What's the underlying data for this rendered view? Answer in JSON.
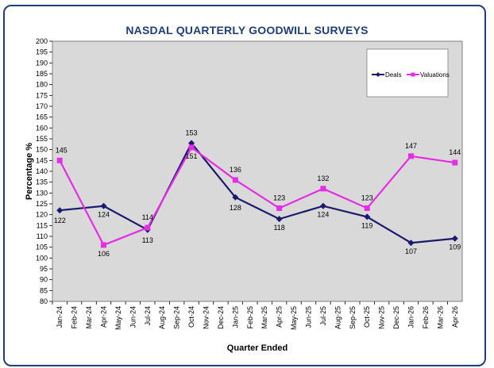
{
  "chart_data": {
    "type": "line",
    "title": "NASDAL QUARTERLY GOODWILL SURVEYS",
    "xlabel": "Quarter Ended",
    "ylabel": "Percentage %",
    "ylim": [
      80,
      200
    ],
    "ystep": 5,
    "grid": false,
    "legend_position": "top-right",
    "categories": [
      "Jan-24",
      "Feb-24",
      "Mar-24",
      "Apr-24",
      "May-24",
      "Jun-24",
      "Jul-24",
      "Aug-24",
      "Sep-24",
      "Oct-24",
      "Nov-24",
      "Dec-24",
      "Jan-25",
      "Feb-25",
      "Mar-25",
      "Apr-25",
      "May-25",
      "Jun-25",
      "Jul-25",
      "Aug-25",
      "Sep-25",
      "Oct-25",
      "Nov-25",
      "Dec-25",
      "Jan-26",
      "Feb-26",
      "Mar-26",
      "Apr-26"
    ],
    "series": [
      {
        "name": "Deals",
        "color": "#1a1a6e",
        "marker": "diamond",
        "points": [
          {
            "x": "Jan-24",
            "y": 122
          },
          {
            "x": "Apr-24",
            "y": 124
          },
          {
            "x": "Jul-24",
            "y": 113
          },
          {
            "x": "Oct-24",
            "y": 153
          },
          {
            "x": "Jan-25",
            "y": 128
          },
          {
            "x": "Apr-25",
            "y": 118
          },
          {
            "x": "Jul-25",
            "y": 124
          },
          {
            "x": "Oct-25",
            "y": 119
          },
          {
            "x": "Jan-26",
            "y": 107
          },
          {
            "x": "Apr-26",
            "y": 109
          }
        ]
      },
      {
        "name": "Valuations",
        "color": "#e62de6",
        "marker": "square",
        "points": [
          {
            "x": "Jan-24",
            "y": 145
          },
          {
            "x": "Apr-24",
            "y": 106
          },
          {
            "x": "Jul-24",
            "y": 114
          },
          {
            "x": "Oct-24",
            "y": 151
          },
          {
            "x": "Jan-25",
            "y": 136
          },
          {
            "x": "Apr-25",
            "y": 123
          },
          {
            "x": "Jul-25",
            "y": 132
          },
          {
            "x": "Oct-25",
            "y": 123
          },
          {
            "x": "Jan-26",
            "y": 147
          },
          {
            "x": "Apr-26",
            "y": 144
          }
        ]
      }
    ],
    "plot_background": "#d9d9d9"
  }
}
